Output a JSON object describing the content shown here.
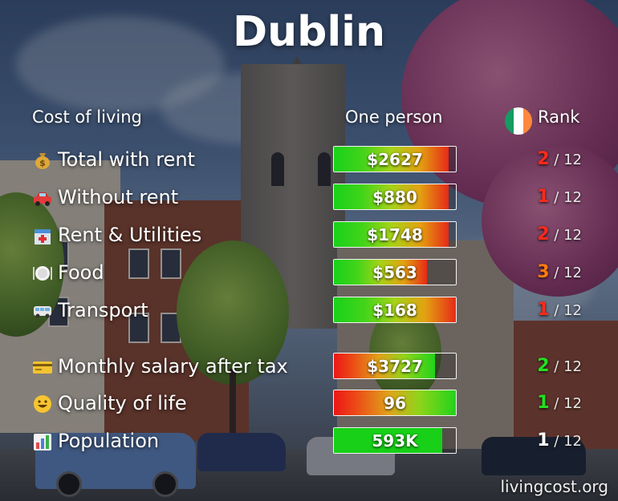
{
  "title": "Dublin",
  "headers": {
    "cost_of_living": "Cost of living",
    "one_person": "One person",
    "rank": "Rank"
  },
  "colors": {
    "rank_red": "#ff2a1a",
    "rank_orange": "#ff7a10",
    "rank_green": "#22e020",
    "rank_white": "#ffffff",
    "flag": [
      "#169b62",
      "#ffffff",
      "#ff883e"
    ]
  },
  "rows": [
    {
      "icon": "money-bag-icon",
      "label": "Total with rent",
      "value": "$2627",
      "fill_pct": 94,
      "scale": "green-to-red",
      "rank": "2",
      "rank_total": "/ 12",
      "rank_color": "red"
    },
    {
      "icon": "car-icon",
      "label": "Without rent",
      "value": "$880",
      "fill_pct": 94,
      "scale": "green-to-red",
      "rank": "1",
      "rank_total": "/ 12",
      "rank_color": "red"
    },
    {
      "icon": "hospital-icon",
      "label": "Rent & Utilities",
      "value": "$1748",
      "fill_pct": 94,
      "scale": "green-to-red",
      "rank": "2",
      "rank_total": "/ 12",
      "rank_color": "red"
    },
    {
      "icon": "plate-icon",
      "label": "Food",
      "value": "$563",
      "fill_pct": 76,
      "scale": "green-to-red",
      "rank": "3",
      "rank_total": "/ 12",
      "rank_color": "orange"
    },
    {
      "icon": "bus-icon",
      "label": "Transport",
      "value": "$168",
      "fill_pct": 100,
      "scale": "green-to-red",
      "rank": "1",
      "rank_total": "/ 12",
      "rank_color": "red"
    },
    {
      "icon": "credit-card-icon",
      "label": "Monthly salary after tax",
      "value": "$3727",
      "fill_pct": 83,
      "scale": "red-to-green",
      "rank": "2",
      "rank_total": "/ 12",
      "rank_color": "green"
    },
    {
      "icon": "smiley-icon",
      "label": "Quality of life",
      "value": "96",
      "fill_pct": 100,
      "scale": "red-to-green",
      "rank": "1",
      "rank_total": "/ 12",
      "rank_color": "green"
    },
    {
      "icon": "bar-chart-icon",
      "label": "Population",
      "value": "593K",
      "fill_pct": 89,
      "scale": "solid-green",
      "rank": "1",
      "rank_total": "/ 12",
      "rank_color": "white"
    }
  ],
  "footer": "livingcost.org"
}
